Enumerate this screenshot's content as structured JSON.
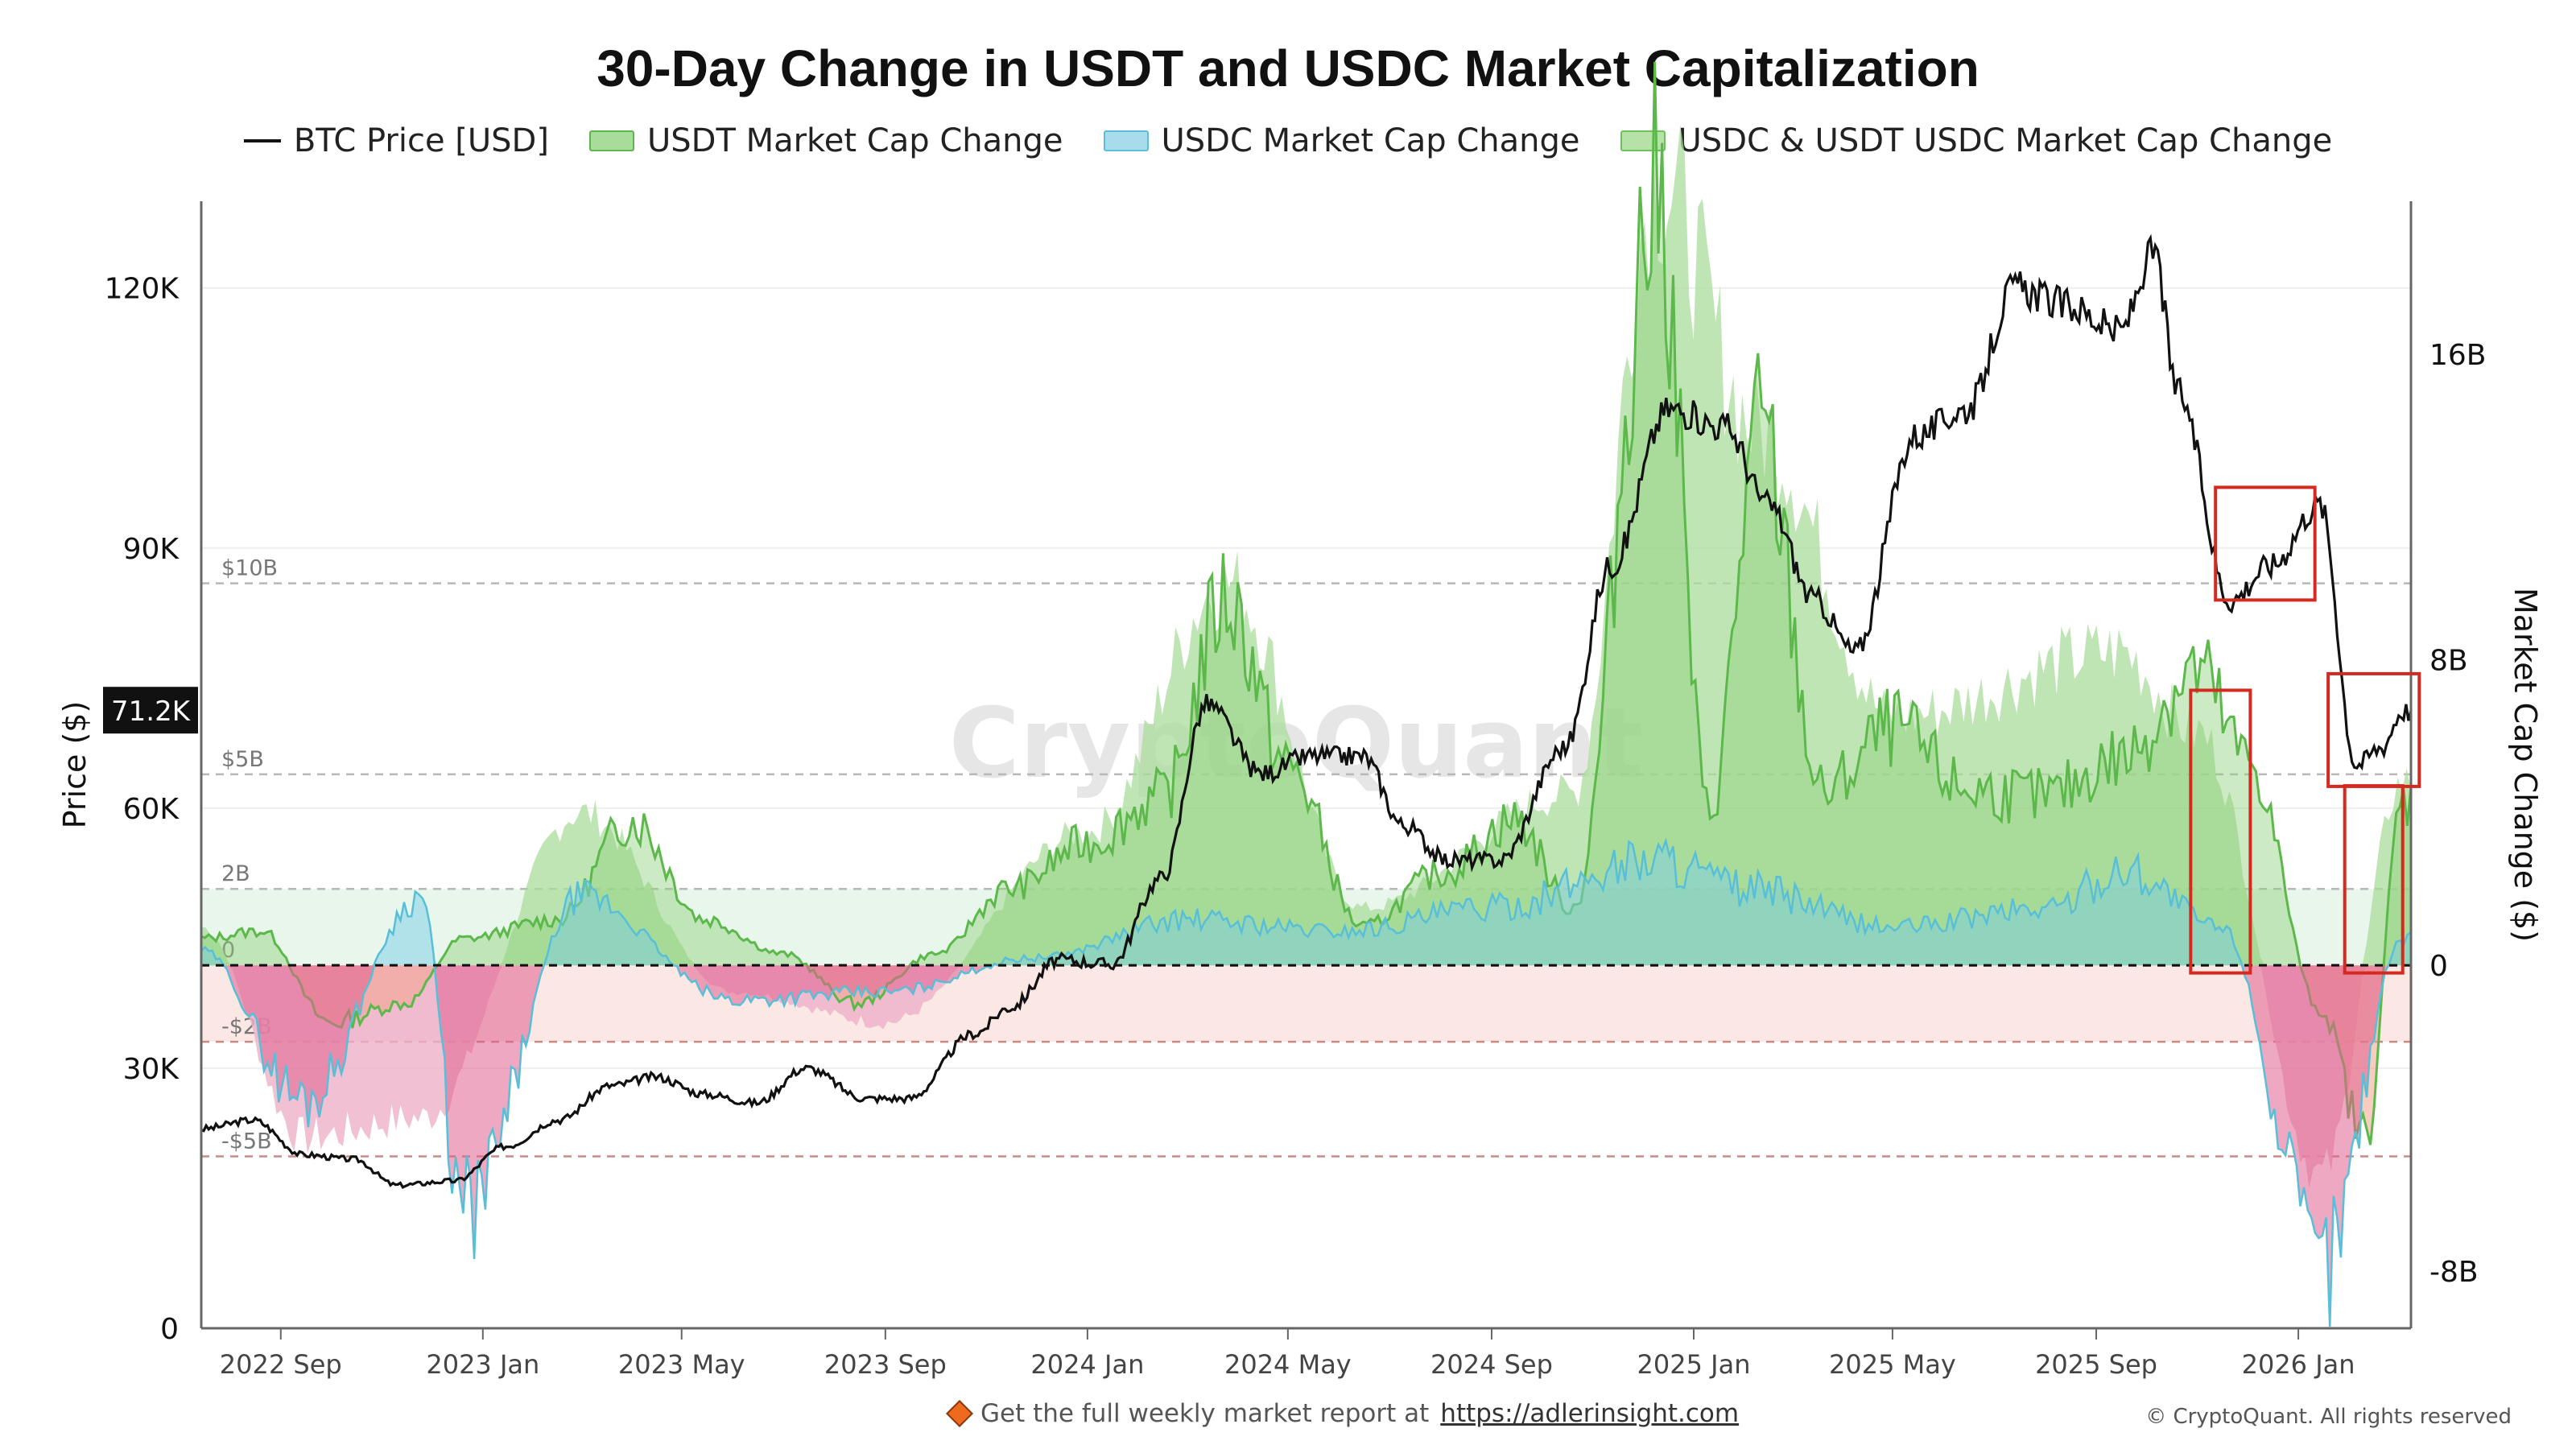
{
  "title": "30-Day Change in USDT and USDC Market Capitalization",
  "legend": [
    {
      "label": "BTC Price [USD]",
      "type": "line",
      "color": "#111111"
    },
    {
      "label": "USDT Market Cap Change",
      "type": "area",
      "color": "#6cc35a"
    },
    {
      "label": "USDC Market Cap Change",
      "type": "area",
      "color": "#7ccde6"
    },
    {
      "label": "USDC & USDT USDC Market Cap Change",
      "type": "area",
      "color": "#8fd17a"
    }
  ],
  "watermark": "CryptoQuant",
  "footer": {
    "text": "Get the full weekly market report at",
    "link": "https://adlerinsight.com"
  },
  "copyright": "© CryptoQuant. All rights reserved",
  "colors": {
    "btc": "#111111",
    "usdt": "#5cb84a",
    "usdc": "#58bfd8",
    "combined_fill": "#a9dc9b",
    "negative": "#e0608f",
    "highlight": "#d42a1f"
  },
  "chart_data": {
    "type": "line",
    "title": "30-Day Change in USDT and USDC Market Capitalization",
    "x_ticks": [
      "2022 Sep",
      "2023 Jan",
      "2023 May",
      "2023 Sep",
      "2024 Jan",
      "2024 May",
      "2024 Sep",
      "2025 Jan",
      "2025 May",
      "2025 Sep",
      "2026 Jan"
    ],
    "x_range": [
      "2022-07-15",
      "2026-03-10"
    ],
    "left_axis": {
      "label": "Price ($)",
      "ticks": [
        "0",
        "30K",
        "60K",
        "90K",
        "120K"
      ],
      "ylim": [
        0,
        130000
      ]
    },
    "right_axis": {
      "label": "Market Cap Change ($)",
      "ticks": [
        "-8B",
        "0",
        "8B",
        "16B"
      ],
      "ylim": [
        -9500000000,
        20000000000
      ]
    },
    "current_price_label": "71.2K",
    "reference_lines": [
      {
        "label": "$10B",
        "value": 10000000000
      },
      {
        "label": "$5B",
        "value": 5000000000
      },
      {
        "label": "2B",
        "value": 2000000000
      },
      {
        "label": "0",
        "value": 0
      },
      {
        "label": "-$2B",
        "value": -2000000000
      },
      {
        "label": "-$5B",
        "value": -5000000000
      }
    ],
    "grid": true,
    "legend_position": "top",
    "series": [
      {
        "name": "BTC Price [USD]",
        "axis": "left",
        "x": [
          "2022-07-15",
          "2022-08-15",
          "2022-09-15",
          "2022-10-15",
          "2022-11-10",
          "2022-12-15",
          "2023-01-15",
          "2023-02-15",
          "2023-03-20",
          "2023-04-15",
          "2023-05-15",
          "2023-06-15",
          "2023-07-15",
          "2023-08-20",
          "2023-09-15",
          "2023-10-25",
          "2023-11-15",
          "2023-12-15",
          "2024-01-15",
          "2024-02-15",
          "2024-03-13",
          "2024-04-15",
          "2024-05-15",
          "2024-06-15",
          "2024-07-10",
          "2024-08-05",
          "2024-09-06",
          "2024-10-15",
          "2024-11-12",
          "2024-12-17",
          "2025-01-20",
          "2025-02-15",
          "2025-03-15",
          "2025-04-08",
          "2025-05-15",
          "2025-06-15",
          "2025-07-14",
          "2025-08-14",
          "2025-09-15",
          "2025-10-06",
          "2025-10-20",
          "2025-11-21",
          "2025-12-15",
          "2026-01-14",
          "2026-02-05",
          "2026-02-20",
          "2026-03-05"
        ],
        "values": [
          23000,
          24000,
          20000,
          19500,
          16500,
          17000,
          21000,
          24000,
          28000,
          29000,
          27000,
          26000,
          30000,
          26500,
          26500,
          34000,
          37000,
          42500,
          42000,
          52000,
          72000,
          64000,
          66000,
          66000,
          58000,
          54000,
          54000,
          67000,
          88000,
          106000,
          104000,
          95000,
          84000,
          78000,
          103000,
          106000,
          120000,
          118000,
          115000,
          124000,
          108000,
          84000,
          88000,
          95000,
          65000,
          67000,
          71200
        ]
      },
      {
        "name": "USDT Market Cap Change",
        "axis": "right",
        "x": [
          "2022-07-15",
          "2022-08-20",
          "2022-10-01",
          "2022-11-15",
          "2022-12-20",
          "2023-02-15",
          "2023-04-01",
          "2023-05-15",
          "2023-07-01",
          "2023-08-15",
          "2023-10-01",
          "2023-11-15",
          "2024-01-01",
          "2024-02-15",
          "2024-03-25",
          "2024-05-01",
          "2024-06-15",
          "2024-08-01",
          "2024-09-15",
          "2024-10-20",
          "2024-12-10",
          "2025-01-10",
          "2025-02-10",
          "2025-03-20",
          "2025-05-01",
          "2025-06-15",
          "2025-08-01",
          "2025-09-15",
          "2025-11-01",
          "2025-12-01",
          "2026-01-15",
          "2026-02-10",
          "2026-03-05"
        ],
        "values": [
          700000000,
          900000000,
          -1500000000,
          -1000000000,
          700000000,
          1200000000,
          3800000000,
          1200000000,
          300000000,
          -1000000000,
          300000000,
          2000000000,
          3200000000,
          4400000000,
          9600000000,
          5200000000,
          1000000000,
          2400000000,
          3800000000,
          1500000000,
          20200000000,
          4000000000,
          13900000000,
          4500000000,
          6200000000,
          4600000000,
          4400000000,
          5400000000,
          7700000000,
          5400000000,
          -1200000000,
          -4500000000,
          4300000000
        ]
      },
      {
        "name": "USDC Market Cap Change",
        "axis": "right",
        "x": [
          "2022-07-15",
          "2022-09-15",
          "2022-11-25",
          "2022-12-20",
          "2023-03-01",
          "2023-06-01",
          "2023-09-01",
          "2023-12-01",
          "2024-03-01",
          "2024-06-01",
          "2024-09-01",
          "2024-12-10",
          "2025-02-01",
          "2025-05-01",
          "2025-08-01",
          "2025-09-20",
          "2025-11-15",
          "2026-01-15",
          "2026-03-05"
        ],
        "values": [
          400000000,
          -3500000000,
          1800000000,
          -6500000000,
          1800000000,
          -900000000,
          -700000000,
          200000000,
          1200000000,
          900000000,
          1500000000,
          2800000000,
          2000000000,
          1000000000,
          1500000000,
          2500000000,
          1000000000,
          -7800000000,
          700000000
        ]
      },
      {
        "name": "USDC & USDT USDC Market Cap Change",
        "axis": "right",
        "x": [
          "2022-07-15",
          "2022-09-15",
          "2022-11-25",
          "2023-03-01",
          "2023-06-01",
          "2023-09-01",
          "2024-01-01",
          "2024-03-25",
          "2024-06-15",
          "2024-10-20",
          "2024-12-10",
          "2025-02-10",
          "2025-05-01",
          "2025-09-15",
          "2025-11-01",
          "2026-01-15",
          "2026-03-05"
        ],
        "values": [
          1000000000,
          -4500000000,
          -4000000000,
          4000000000,
          -700000000,
          -1500000000,
          3500000000,
          10000000000,
          1500000000,
          4500000000,
          20500000000,
          14000000000,
          6500000000,
          8200000000,
          6100000000,
          -5500000000,
          4800000000
        ]
      }
    ],
    "annotations": [
      "red box around BTC plateau near 85K–95K (Nov–Dec 2025)",
      "red box around BTC drop to ~65K–72K (Feb–Mar 2026)",
      "red box around stablecoin inflow peak (Nov 2025)",
      "red box around renewed stablecoin inflow (Feb–Mar 2026)"
    ]
  }
}
